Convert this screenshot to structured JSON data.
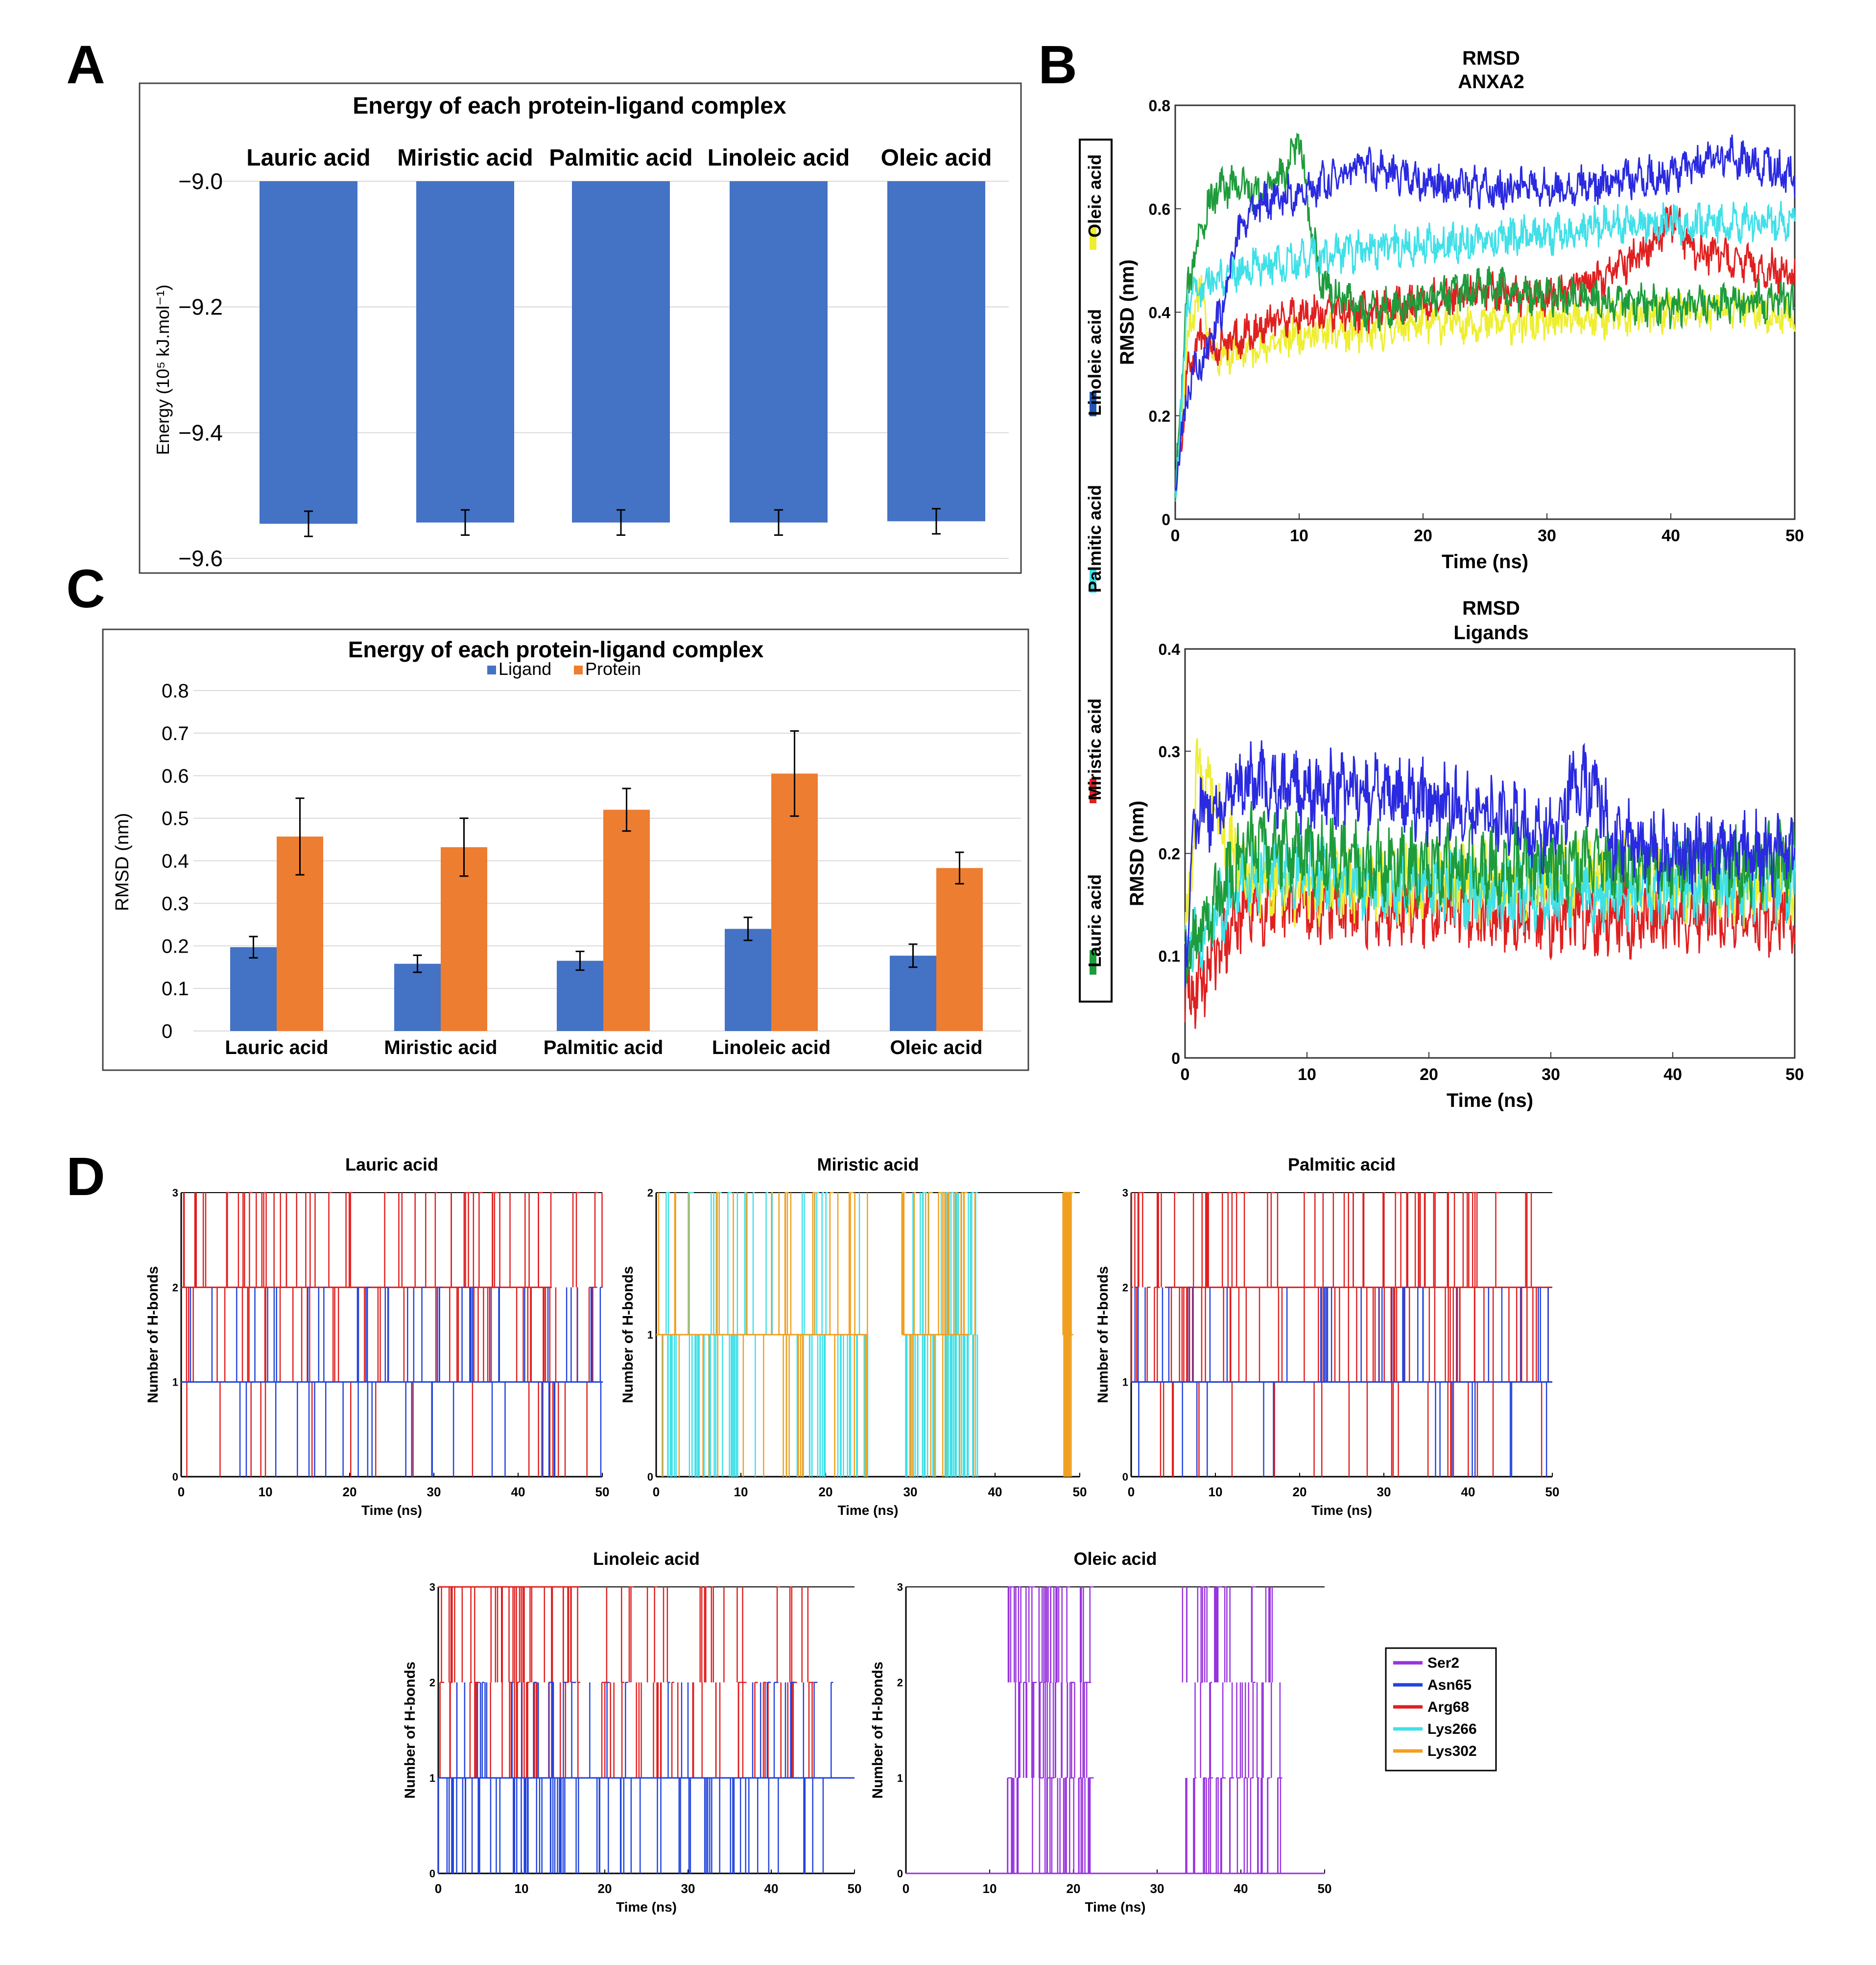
{
  "panel_letters": {
    "a": "A",
    "b": "B",
    "c": "C",
    "d": "D"
  },
  "colors": {
    "ligand": "#4472C4",
    "protein": "#ED7D31",
    "bar": "#4472C4",
    "lauric": "#1e9c3c",
    "miristic": "#e02020",
    "palmitic": "#40e0e8",
    "linoleic": "#2256b5",
    "oleic": "#eeee30",
    "anxa_lauric": "#1e9c3c",
    "rmsd_blue": "#2a2ae0",
    "ser2": "#9933dd",
    "asn65": "#2244dd",
    "arg68": "#e02020",
    "lys266": "#40e0e8",
    "lys302": "#f0a020"
  },
  "chart_data": [
    {
      "id": "A",
      "type": "bar",
      "title": "Energy of each protein-ligand complex",
      "ylabel": "Energy (10⁵ kJ.mol⁻¹)",
      "categories": [
        "Lauric acid",
        "Miristic acid",
        "Palmitic acid",
        "Linoleic acid",
        "Oleic acid"
      ],
      "values": [
        -9.545,
        -9.543,
        -9.543,
        -9.543,
        -9.541
      ],
      "errors": [
        0.02,
        0.02,
        0.02,
        0.02,
        0.02
      ],
      "ylim": [
        -9.6,
        -9.0
      ],
      "yticks": [
        -9.0,
        -9.2,
        -9.4,
        -9.6
      ],
      "ytick_labels": [
        "−9.0",
        "−9.2",
        "−9.4",
        "−9.6"
      ],
      "categories_position": "top"
    },
    {
      "id": "C",
      "type": "bar",
      "title": "Energy of each protein-ligand complex",
      "ylabel": "RMSD (nm)",
      "categories": [
        "Lauric acid",
        "Miristic acid",
        "Palmitic acid",
        "Linoleic acid",
        "Oleic acid"
      ],
      "series": [
        {
          "name": "Ligand",
          "values": [
            0.197,
            0.158,
            0.165,
            0.24,
            0.177
          ],
          "errors": [
            0.025,
            0.02,
            0.022,
            0.027,
            0.027
          ]
        },
        {
          "name": "Protein",
          "values": [
            0.457,
            0.432,
            0.52,
            0.605,
            0.383
          ],
          "errors": [
            0.09,
            0.068,
            0.05,
            0.1,
            0.037
          ]
        }
      ],
      "ylim": [
        0,
        0.8
      ],
      "yticks": [
        0,
        0.1,
        0.2,
        0.3,
        0.4,
        0.5,
        0.6,
        0.7,
        0.8
      ],
      "ytick_labels": [
        "0",
        "0.1",
        "0.2",
        "0.3",
        "0.4",
        "0.5",
        "0.6",
        "0.7",
        "0.8"
      ],
      "legend": "top"
    },
    {
      "id": "B1",
      "type": "line",
      "title": "RMSD",
      "subtitle": "ANXA2",
      "xlabel": "Time (ns)",
      "ylabel": "RMSD (nm)",
      "xlim": [
        0,
        50
      ],
      "ylim": [
        0,
        0.8
      ],
      "xticks": [
        0,
        10,
        20,
        30,
        40,
        50
      ],
      "xtick_labels": [
        "0",
        "10",
        "20",
        "30",
        "40",
        "50"
      ],
      "yticks": [
        0,
        0.2,
        0.4,
        0.6,
        0.8
      ],
      "ytick_labels": [
        "0",
        "0.2",
        "0.4",
        "0.6",
        "0.8"
      ],
      "series": [
        {
          "name": "Oleic acid",
          "color_key": "oleic",
          "x": [
            0,
            1,
            2,
            3,
            5,
            8,
            10,
            15,
            20,
            25,
            30,
            35,
            40,
            45,
            50
          ],
          "y": [
            0.05,
            0.35,
            0.45,
            0.32,
            0.32,
            0.34,
            0.36,
            0.36,
            0.38,
            0.38,
            0.38,
            0.39,
            0.4,
            0.41,
            0.39
          ]
        },
        {
          "name": "Miristic acid",
          "color_key": "miristic",
          "x": [
            0,
            1,
            2,
            3,
            5,
            8,
            10,
            15,
            20,
            25,
            30,
            35,
            38,
            40,
            42,
            45,
            50
          ],
          "y": [
            0.05,
            0.28,
            0.35,
            0.33,
            0.35,
            0.38,
            0.4,
            0.4,
            0.42,
            0.44,
            0.43,
            0.47,
            0.52,
            0.58,
            0.52,
            0.5,
            0.47
          ]
        },
        {
          "name": "Lauric acid",
          "color_key": "anxa_lauric",
          "x": [
            0,
            1,
            2,
            3,
            5,
            7,
            9,
            10,
            11,
            12,
            15,
            20,
            25,
            30,
            35,
            40,
            45,
            50
          ],
          "y": [
            0.05,
            0.45,
            0.55,
            0.63,
            0.65,
            0.62,
            0.68,
            0.74,
            0.55,
            0.45,
            0.4,
            0.42,
            0.45,
            0.43,
            0.42,
            0.41,
            0.42,
            0.42
          ]
        },
        {
          "name": "Palmitic acid",
          "color_key": "palmitic",
          "x": [
            0,
            1,
            2,
            5,
            10,
            15,
            20,
            25,
            30,
            35,
            40,
            45,
            50
          ],
          "y": [
            0.05,
            0.42,
            0.45,
            0.48,
            0.5,
            0.52,
            0.53,
            0.54,
            0.55,
            0.57,
            0.57,
            0.57,
            0.58
          ]
        },
        {
          "name": "Linoleic acid",
          "color_key": "rmsd_blue",
          "x": [
            0,
            1,
            2,
            3,
            4,
            5,
            6,
            8,
            10,
            15,
            20,
            25,
            30,
            35,
            40,
            45,
            48,
            50
          ],
          "y": [
            0.05,
            0.25,
            0.3,
            0.35,
            0.42,
            0.55,
            0.6,
            0.62,
            0.63,
            0.68,
            0.65,
            0.64,
            0.64,
            0.65,
            0.67,
            0.7,
            0.68,
            0.66
          ]
        }
      ]
    },
    {
      "id": "B2",
      "type": "line",
      "title": "RMSD",
      "subtitle": "Ligands",
      "xlabel": "Time (ns)",
      "ylabel": "RMSD (nm)",
      "xlim": [
        0,
        50
      ],
      "ylim": [
        0,
        0.4
      ],
      "xticks": [
        0,
        10,
        20,
        30,
        40,
        50
      ],
      "xtick_labels": [
        "0",
        "10",
        "20",
        "30",
        "40",
        "50"
      ],
      "yticks": [
        0,
        0.1,
        0.2,
        0.3,
        0.4
      ],
      "ytick_labels": [
        "0",
        "0.1",
        "0.2",
        "0.3",
        "0.4"
      ],
      "series": [
        {
          "name": "Miristic acid",
          "color_key": "miristic",
          "x": [
            0,
            5,
            10,
            15,
            20,
            25,
            30,
            35,
            40,
            45,
            50
          ],
          "y": [
            0.05,
            0.15,
            0.15,
            0.15,
            0.15,
            0.14,
            0.14,
            0.14,
            0.14,
            0.14,
            0.14
          ]
        },
        {
          "name": "Oleic acid",
          "color_key": "oleic",
          "x": [
            0,
            1,
            5,
            10,
            15,
            20,
            25,
            30,
            35,
            40,
            45,
            50
          ],
          "y": [
            0.1,
            0.28,
            0.18,
            0.17,
            0.17,
            0.17,
            0.17,
            0.17,
            0.18,
            0.17,
            0.17,
            0.17
          ]
        },
        {
          "name": "Palmitic acid",
          "color_key": "palmitic",
          "x": [
            0,
            5,
            10,
            15,
            20,
            25,
            30,
            35,
            40,
            45,
            50
          ],
          "y": [
            0.1,
            0.18,
            0.18,
            0.17,
            0.17,
            0.16,
            0.16,
            0.16,
            0.17,
            0.17,
            0.17
          ]
        },
        {
          "name": "Lauric acid",
          "color_key": "anxa_lauric",
          "x": [
            0,
            5,
            10,
            15,
            20,
            25,
            30,
            35,
            40,
            45,
            50
          ],
          "y": [
            0.1,
            0.21,
            0.2,
            0.19,
            0.19,
            0.19,
            0.19,
            0.19,
            0.19,
            0.19,
            0.19
          ]
        },
        {
          "name": "Linoleic acid",
          "color_key": "rmsd_blue",
          "x": [
            0,
            1,
            2,
            5,
            10,
            15,
            20,
            25,
            30,
            32,
            34,
            35,
            37,
            40,
            45,
            50
          ],
          "y": [
            0.1,
            0.25,
            0.24,
            0.27,
            0.26,
            0.26,
            0.25,
            0.24,
            0.22,
            0.27,
            0.26,
            0.21,
            0.21,
            0.2,
            0.2,
            0.2
          ]
        }
      ],
      "legend": "left-vertical"
    },
    {
      "id": "D1",
      "type": "line",
      "title": "Lauric acid",
      "xlabel": "Time (ns)",
      "ylabel": "Number of H-bonds",
      "xlim": [
        0,
        50
      ],
      "ylim": [
        0,
        3
      ],
      "xtick_labels": [
        "0",
        "10",
        "20",
        "30",
        "40",
        "50"
      ],
      "ytick_labels": [
        "0",
        "1",
        "2",
        "3"
      ],
      "residues": [
        "Arg68",
        "Asn65"
      ]
    },
    {
      "id": "D2",
      "type": "line",
      "title": "Miristic acid",
      "xlabel": "Time (ns)",
      "ylabel": "Number of H-bonds",
      "xlim": [
        0,
        50
      ],
      "ylim": [
        0,
        2
      ],
      "xtick_labels": [
        "0",
        "10",
        "20",
        "30",
        "40",
        "50"
      ],
      "ytick_labels": [
        "0",
        "1",
        "2"
      ],
      "residues": [
        "Lys266",
        "Lys302"
      ]
    },
    {
      "id": "D3",
      "type": "line",
      "title": "Palmitic acid",
      "xlabel": "Time (ns)",
      "ylabel": "Number of H-bonds",
      "xlim": [
        0,
        50
      ],
      "ylim": [
        0,
        3
      ],
      "xtick_labels": [
        "0",
        "10",
        "20",
        "30",
        "40",
        "50"
      ],
      "ytick_labels": [
        "0",
        "1",
        "2",
        "3"
      ],
      "residues": [
        "Arg68",
        "Asn65"
      ]
    },
    {
      "id": "D4",
      "type": "line",
      "title": "Linoleic acid",
      "xlabel": "Time (ns)",
      "ylabel": "Number of H-bonds",
      "xlim": [
        0,
        50
      ],
      "ylim": [
        0,
        3
      ],
      "xtick_labels": [
        "0",
        "10",
        "20",
        "30",
        "40",
        "50"
      ],
      "ytick_labels": [
        "0",
        "1",
        "2",
        "3"
      ],
      "residues": [
        "Arg68",
        "Asn65"
      ]
    },
    {
      "id": "D5",
      "type": "line",
      "title": "Oleic acid",
      "xlabel": "Time (ns)",
      "ylabel": "Number of H-bonds",
      "xlim": [
        0,
        50
      ],
      "ylim": [
        0,
        3
      ],
      "xtick_labels": [
        "0",
        "10",
        "20",
        "30",
        "40",
        "50"
      ],
      "ytick_labels": [
        "0",
        "1",
        "2",
        "3"
      ],
      "residues": [
        "Ser2"
      ]
    }
  ],
  "hbond_legend": [
    "Ser2",
    "Asn65",
    "Arg68",
    "Lys266",
    "Lys302"
  ]
}
